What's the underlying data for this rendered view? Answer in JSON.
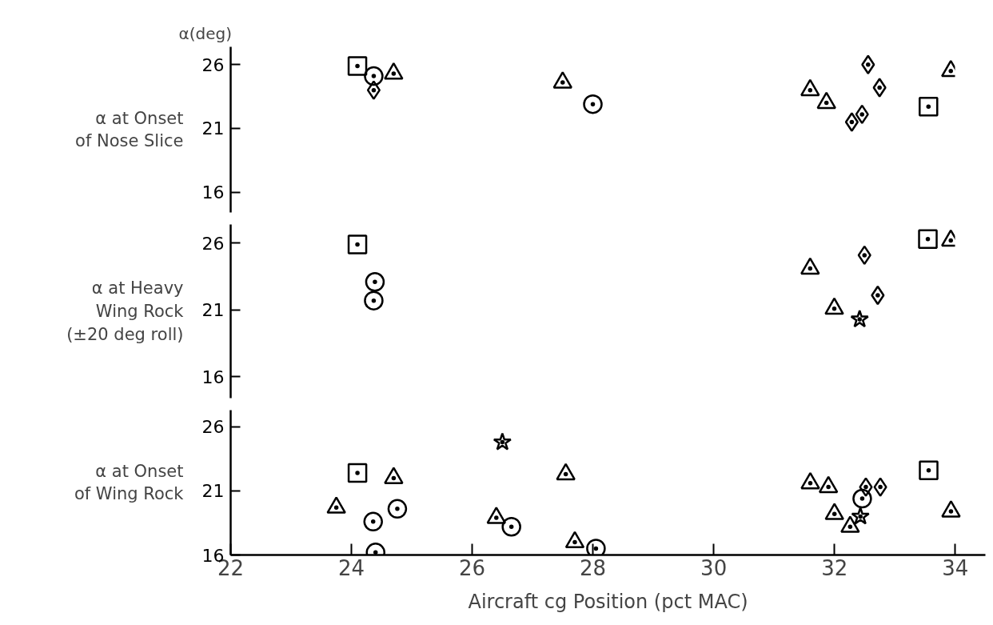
{
  "chart_data": [
    {
      "type": "scatter",
      "title": "α(deg)",
      "ylabel": "α at Onset\nof Nose Slice",
      "xlim": [
        22,
        34
      ],
      "xticks": [
        22,
        24,
        26,
        28,
        30,
        32,
        34
      ],
      "ylim": [
        14.4,
        27.4
      ],
      "yticks": [
        16,
        21,
        26
      ],
      "tick_labels": "y",
      "grid": false,
      "series": [
        {
          "marker": "square",
          "color": "#000000",
          "x": [
            24.1,
            33.56
          ],
          "values": [
            25.9,
            22.7
          ]
        },
        {
          "marker": "circle",
          "color": "#000000",
          "x": [
            24.37,
            28.0
          ],
          "values": [
            25.1,
            22.9
          ]
        },
        {
          "marker": "diamond",
          "color": "#000000",
          "x": [
            24.37
          ],
          "values": [
            24.0
          ]
        },
        {
          "marker": "triangle",
          "color": "#000000",
          "x": [
            24.7
          ],
          "values": [
            25.3
          ]
        },
        {
          "marker": "triangle",
          "color": "#000000",
          "x": [
            27.5,
            31.87,
            33.93
          ],
          "values": [
            24.6,
            23.0,
            25.5
          ]
        },
        {
          "marker": "triangle",
          "color": "#000000",
          "x": [
            31.6
          ],
          "values": [
            24.0
          ]
        },
        {
          "marker": "diamond",
          "color": "#000000",
          "x": [
            32.56,
            32.75,
            32.46,
            32.29
          ],
          "values": [
            26.0,
            24.2,
            22.1,
            21.5
          ]
        }
      ]
    },
    {
      "type": "scatter",
      "ylabel": "α at Heavy\nWing Rock\n(±20 deg roll)",
      "xlim": [
        22,
        34
      ],
      "xticks": [
        22,
        24,
        26,
        28,
        30,
        32,
        34
      ],
      "ylim": [
        14.4,
        27.4
      ],
      "yticks": [
        16,
        21,
        26
      ],
      "tick_labels": "y",
      "grid": false,
      "series": [
        {
          "marker": "square",
          "color": "#000000",
          "x": [
            24.1,
            33.55
          ],
          "values": [
            25.9,
            26.3
          ]
        },
        {
          "marker": "circle",
          "color": "#000000",
          "x": [
            24.39
          ],
          "values": [
            23.1
          ]
        },
        {
          "marker": "circle",
          "color": "#000000",
          "x": [
            24.37
          ],
          "values": [
            21.7
          ]
        },
        {
          "marker": "triangle",
          "color": "#000000",
          "x": [
            31.6
          ],
          "values": [
            24.1
          ]
        },
        {
          "marker": "diamond",
          "color": "#000000",
          "x": [
            32.5,
            32.72
          ],
          "values": [
            25.1,
            22.1
          ]
        },
        {
          "marker": "triangle",
          "color": "#000000",
          "x": [
            32.0,
            33.93
          ],
          "values": [
            21.1,
            26.2
          ]
        },
        {
          "marker": "star",
          "color": "#000000",
          "x": [
            32.42
          ],
          "values": [
            20.3
          ]
        }
      ]
    },
    {
      "type": "scatter",
      "ylabel": "α at Onset\nof Wing Rock",
      "xlabel": "Aircraft cg Position (pct MAC)",
      "xlim": [
        22,
        34.5
      ],
      "ylim": [
        16,
        27.3
      ],
      "xticks": [
        22,
        24,
        26,
        28,
        30,
        32,
        34
      ],
      "yticks": [
        16,
        21,
        26
      ],
      "grid": false,
      "series": [
        {
          "marker": "triangle",
          "color": "#000000",
          "x": [
            23.75,
            27.55,
            31.9,
            32.0,
            33.93
          ],
          "values": [
            19.7,
            22.3,
            21.3,
            19.2,
            19.4
          ]
        },
        {
          "marker": "square",
          "color": "#000000",
          "x": [
            24.1,
            33.56
          ],
          "values": [
            22.4,
            22.6
          ]
        },
        {
          "marker": "circle",
          "color": "#000000",
          "x": [
            24.36,
            24.76
          ],
          "values": [
            18.6,
            19.6
          ]
        },
        {
          "marker": "circle",
          "color": "#000000",
          "x": [
            24.4,
            32.46
          ],
          "values": [
            16.2,
            20.4
          ]
        },
        {
          "marker": "triangle",
          "color": "#000000",
          "x": [
            24.7
          ],
          "values": [
            22.0
          ]
        },
        {
          "marker": "star",
          "color": "#000000",
          "x": [
            26.5
          ],
          "values": [
            24.8
          ]
        },
        {
          "marker": "triangle",
          "color": "#000000",
          "x": [
            26.4,
            27.7
          ],
          "values": [
            18.9,
            17.0
          ]
        },
        {
          "marker": "circle",
          "color": "#000000",
          "x": [
            26.65,
            28.05
          ],
          "values": [
            18.2,
            16.5
          ]
        },
        {
          "marker": "triangle",
          "color": "#000000",
          "x": [
            31.6,
            32.26
          ],
          "values": [
            21.6,
            18.2
          ]
        },
        {
          "marker": "diamond",
          "color": "#000000",
          "x": [
            32.52,
            32.76
          ],
          "values": [
            21.3,
            21.3
          ]
        },
        {
          "marker": "star",
          "color": "#000000",
          "x": [
            32.43
          ],
          "values": [
            19.0
          ]
        }
      ]
    }
  ]
}
